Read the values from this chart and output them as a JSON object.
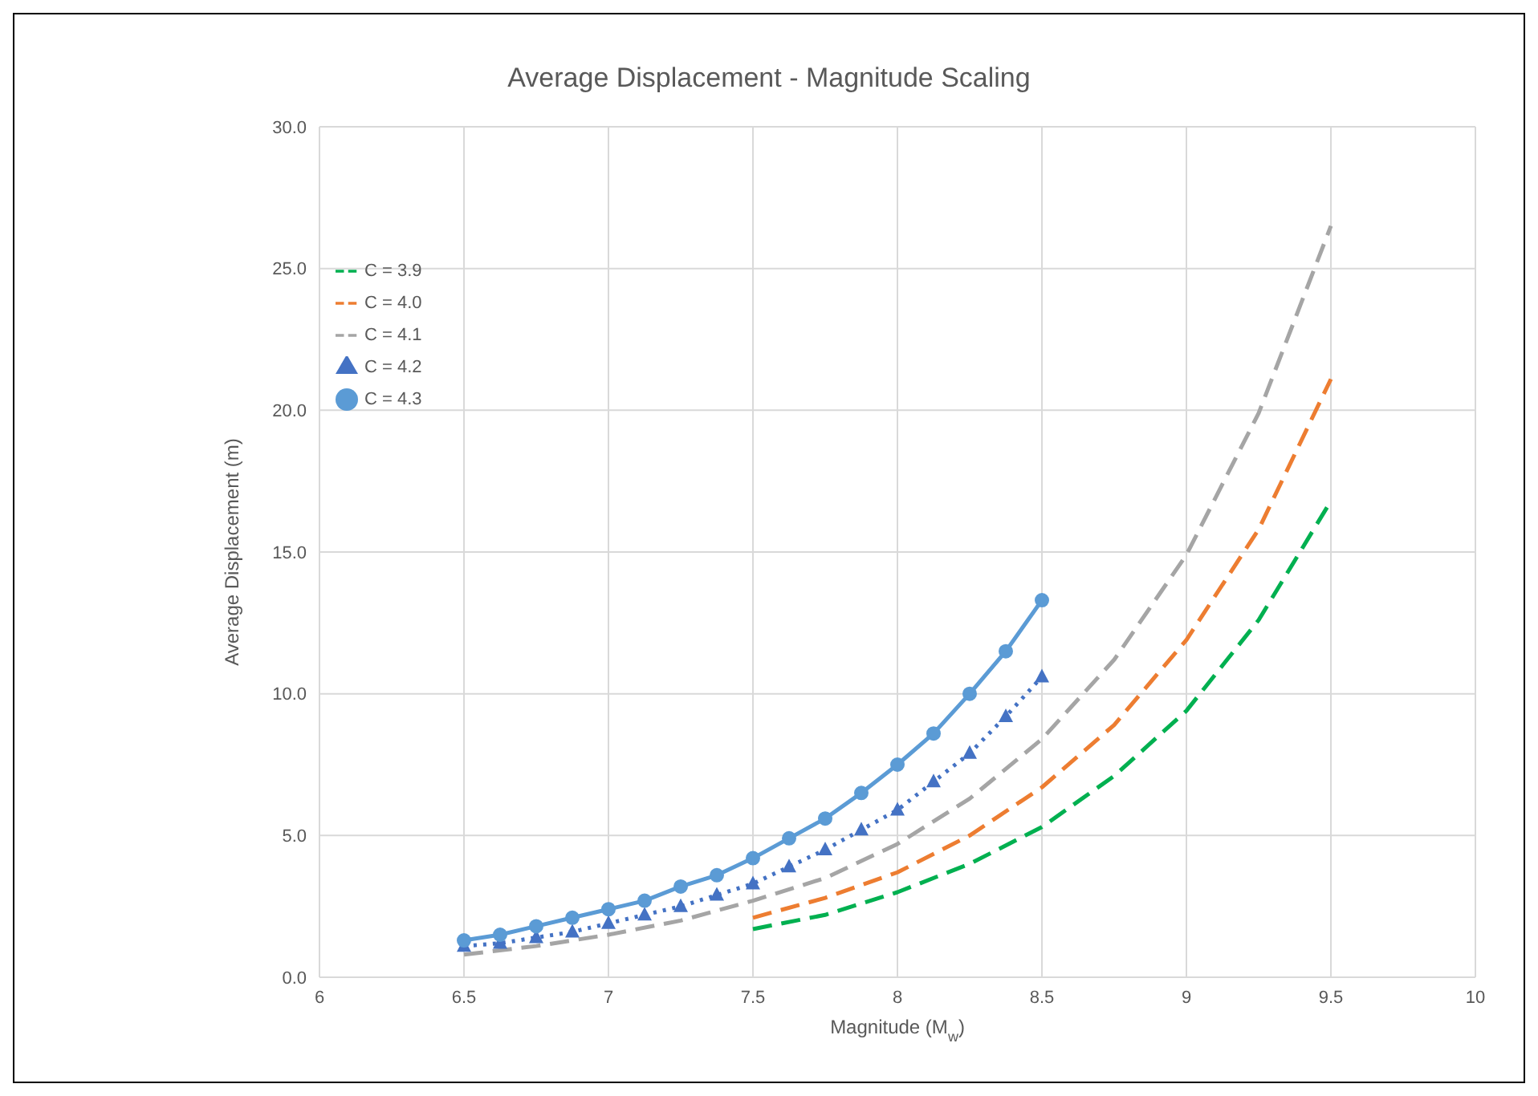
{
  "chart_data": {
    "type": "line",
    "title": "Average Displacement - Magnitude Scaling",
    "xlabel": "Magnitude (M$_{w}$)",
    "ylabel": "Average Displacement (m)",
    "xlim": [
      6,
      10
    ],
    "xticks": [
      6,
      6.5,
      7,
      7.5,
      8,
      8.5,
      9,
      9.5,
      10
    ],
    "ylim": [
      0,
      30
    ],
    "yticks": [
      {
        "value": 0,
        "label": "0.0"
      },
      {
        "value": 5,
        "label": "5.0"
      },
      {
        "value": 10,
        "label": "10.0"
      },
      {
        "value": 15,
        "label": "15.0"
      },
      {
        "value": 20,
        "label": "20.0"
      },
      {
        "value": 25,
        "label": "25.0"
      },
      {
        "value": 30,
        "label": "30.0"
      }
    ],
    "grid": true,
    "legend": "top left",
    "series": [
      {
        "name": "C = 3.9",
        "color": "#00b050",
        "line_style": "dashed",
        "marker": "none",
        "x": [
          7.5,
          7.75,
          8,
          8.25,
          8.5,
          8.75,
          9,
          9.25,
          9.5
        ],
        "values": [
          1.7,
          2.2,
          3.0,
          4.0,
          5.3,
          7.1,
          9.4,
          12.6,
          16.8
        ]
      },
      {
        "name": "C = 4.0",
        "color": "#ed7d31",
        "line_style": "dashed",
        "marker": "none",
        "x": [
          7.5,
          7.75,
          8,
          8.25,
          8.5,
          8.75,
          9,
          9.25,
          9.5
        ],
        "values": [
          2.1,
          2.8,
          3.7,
          5.0,
          6.7,
          8.9,
          11.9,
          15.8,
          21.1
        ]
      },
      {
        "name": "C = 4.1",
        "color": "#a5a5a5",
        "line_style": "dashed",
        "marker": "none",
        "x": [
          6.5,
          6.75,
          7,
          7.25,
          7.5,
          7.75,
          8,
          8.25,
          8.5,
          8.75,
          9,
          9.25,
          9.5
        ],
        "values": [
          0.8,
          1.1,
          1.5,
          2.0,
          2.7,
          3.5,
          4.7,
          6.3,
          8.4,
          11.2,
          14.9,
          19.9,
          26.5
        ]
      },
      {
        "name": "C = 4.2",
        "color": "#4472c4",
        "line_style": "dotted",
        "marker": "triangle",
        "x": [
          6.5,
          6.625,
          6.75,
          6.875,
          7,
          7.125,
          7.25,
          7.375,
          7.5,
          7.625,
          7.75,
          7.875,
          8,
          8.125,
          8.25,
          8.375,
          8.5
        ],
        "values": [
          1.1,
          1.2,
          1.4,
          1.6,
          1.9,
          2.2,
          2.5,
          2.9,
          3.3,
          3.9,
          4.5,
          5.2,
          5.9,
          6.9,
          7.9,
          9.2,
          10.6
        ]
      },
      {
        "name": "C = 4.3",
        "color": "#5b9bd5",
        "line_style": "solid",
        "marker": "circle",
        "x": [
          6.5,
          6.625,
          6.75,
          6.875,
          7,
          7.125,
          7.25,
          7.375,
          7.5,
          7.625,
          7.75,
          7.875,
          8,
          8.125,
          8.25,
          8.375,
          8.5
        ],
        "values": [
          1.3,
          1.5,
          1.8,
          2.1,
          2.4,
          2.7,
          3.2,
          3.6,
          4.2,
          4.9,
          5.6,
          6.5,
          7.5,
          8.6,
          10.0,
          11.5,
          13.3
        ]
      }
    ]
  }
}
